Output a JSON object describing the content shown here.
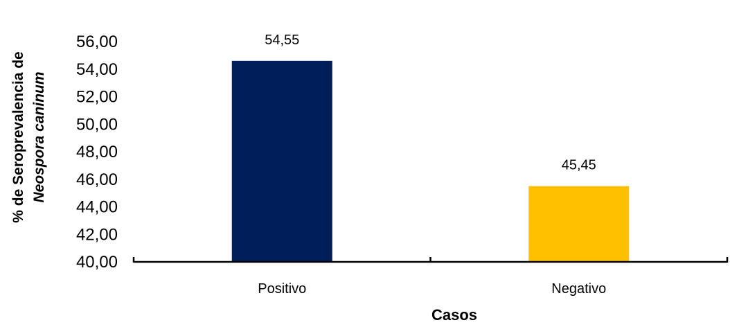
{
  "chart_data": {
    "type": "bar",
    "title": "",
    "categories": [
      "Positivo",
      "Negativo"
    ],
    "values": [
      54.55,
      45.45
    ],
    "bar_colors": [
      "#001e5a",
      "#ffc000"
    ],
    "data_labels": [
      "54,55",
      "45,45"
    ],
    "xlabel": "Casos",
    "ylabel": {
      "line1": "% de Seroprevalencia de",
      "line2_italic": "Neospora caninum"
    },
    "ylim": [
      40,
      56
    ],
    "y_ticks": [
      40,
      42,
      44,
      46,
      48,
      50,
      52,
      54,
      56
    ],
    "y_tick_labels": [
      "40,00",
      "42,00",
      "44,00",
      "46,00",
      "48,00",
      "50,00",
      "52,00",
      "54,00",
      "56,00"
    ],
    "grid": false,
    "legend": "none"
  }
}
